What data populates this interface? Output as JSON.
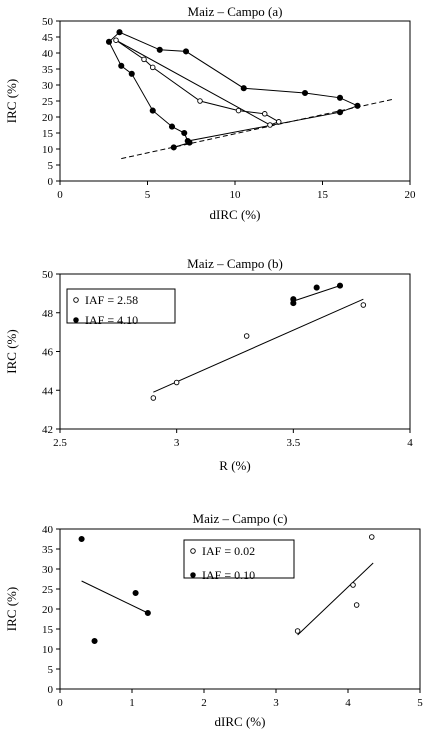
{
  "chart_data": [
    {
      "type": "line",
      "title": "Maiz – Campo (a)",
      "xlabel": "dIRC (%)",
      "ylabel": "IRC (%)",
      "xlim": [
        0,
        20
      ],
      "ylim": [
        0,
        50
      ],
      "xticks": [
        "0",
        "5",
        "10",
        "15",
        "20"
      ],
      "yticks": [
        "0",
        "5",
        "10",
        "15",
        "20",
        "25",
        "30",
        "35",
        "40",
        "45",
        "50"
      ],
      "series": [
        {
          "marker": "filled",
          "points": [
            [
              3.4,
              46.5
            ],
            [
              5.7,
              41
            ],
            [
              7.2,
              40.5
            ],
            [
              10.5,
              29
            ],
            [
              14,
              27.5
            ],
            [
              16,
              26
            ],
            [
              17,
              23.5
            ],
            [
              16,
              21.5
            ],
            [
              7.3,
              12.5
            ],
            [
              7.1,
              15
            ],
            [
              6.4,
              17
            ],
            [
              5.3,
              22
            ],
            [
              4.1,
              33.5
            ],
            [
              3.5,
              36
            ],
            [
              2.8,
              43.5
            ],
            [
              3.4,
              46.5
            ]
          ]
        },
        {
          "marker": "open",
          "points": [
            [
              3.2,
              44
            ],
            [
              4.8,
              38
            ],
            [
              5.3,
              35.5
            ],
            [
              8.0,
              25
            ],
            [
              10.2,
              22
            ],
            [
              11.7,
              21
            ],
            [
              12.5,
              18.5
            ],
            [
              12.0,
              17.5
            ],
            [
              3.2,
              44
            ]
          ]
        },
        {
          "marker": "filled",
          "points": [
            [
              7.4,
              12
            ],
            [
              6.5,
              10.5
            ]
          ]
        }
      ],
      "trendline": {
        "style": "dashed",
        "points": [
          [
            3.5,
            7
          ],
          [
            19,
            25.5
          ]
        ]
      }
    },
    {
      "type": "scatter",
      "title": "Maiz – Campo (b)",
      "xlabel": "R (%)",
      "ylabel": "IRC (%)",
      "xlim": [
        2.5,
        4
      ],
      "ylim": [
        42,
        50
      ],
      "xticks": [
        "2.5",
        "3",
        "3.5",
        "4"
      ],
      "yticks": [
        "42",
        "44",
        "46",
        "48",
        "50"
      ],
      "legend": [
        "IAF = 2.58",
        "IAF = 4.10"
      ],
      "series": [
        {
          "name": "IAF = 2.58",
          "marker": "open",
          "points": [
            [
              2.9,
              43.6
            ],
            [
              3.0,
              44.4
            ],
            [
              3.3,
              46.8
            ],
            [
              3.8,
              48.4
            ]
          ],
          "fit": [
            [
              2.9,
              43.9
            ],
            [
              3.8,
              48.7
            ]
          ]
        },
        {
          "name": "IAF = 4.10",
          "marker": "filled",
          "points": [
            [
              3.5,
              48.5
            ],
            [
              3.5,
              48.7
            ],
            [
              3.6,
              49.3
            ],
            [
              3.7,
              49.4
            ]
          ],
          "fit": [
            [
              3.5,
              48.6
            ],
            [
              3.7,
              49.4
            ]
          ]
        }
      ]
    },
    {
      "type": "scatter",
      "title": "Maiz – Campo (c)",
      "xlabel": "dIRC (%)",
      "ylabel": "IRC (%)",
      "xlim": [
        0,
        5
      ],
      "ylim": [
        0,
        40
      ],
      "xticks": [
        "0",
        "1",
        "2",
        "3",
        "4",
        "5"
      ],
      "yticks": [
        "0",
        "5",
        "10",
        "15",
        "20",
        "25",
        "30",
        "35",
        "40"
      ],
      "legend": [
        "IAF = 0.02",
        "IAF = 0.10"
      ],
      "series": [
        {
          "name": "IAF = 0.02",
          "marker": "open",
          "points": [
            [
              3.3,
              14.5
            ],
            [
              4.07,
              26
            ],
            [
              4.12,
              21
            ],
            [
              4.33,
              38
            ]
          ],
          "fit": [
            [
              3.3,
              13.5
            ],
            [
              4.35,
              31.5
            ]
          ]
        },
        {
          "name": "IAF = 0.10",
          "marker": "filled",
          "points": [
            [
              0.3,
              37.5
            ],
            [
              0.48,
              12
            ],
            [
              1.05,
              24
            ],
            [
              1.22,
              19
            ]
          ],
          "fit": [
            [
              0.3,
              27
            ],
            [
              1.22,
              19
            ]
          ]
        }
      ]
    }
  ]
}
